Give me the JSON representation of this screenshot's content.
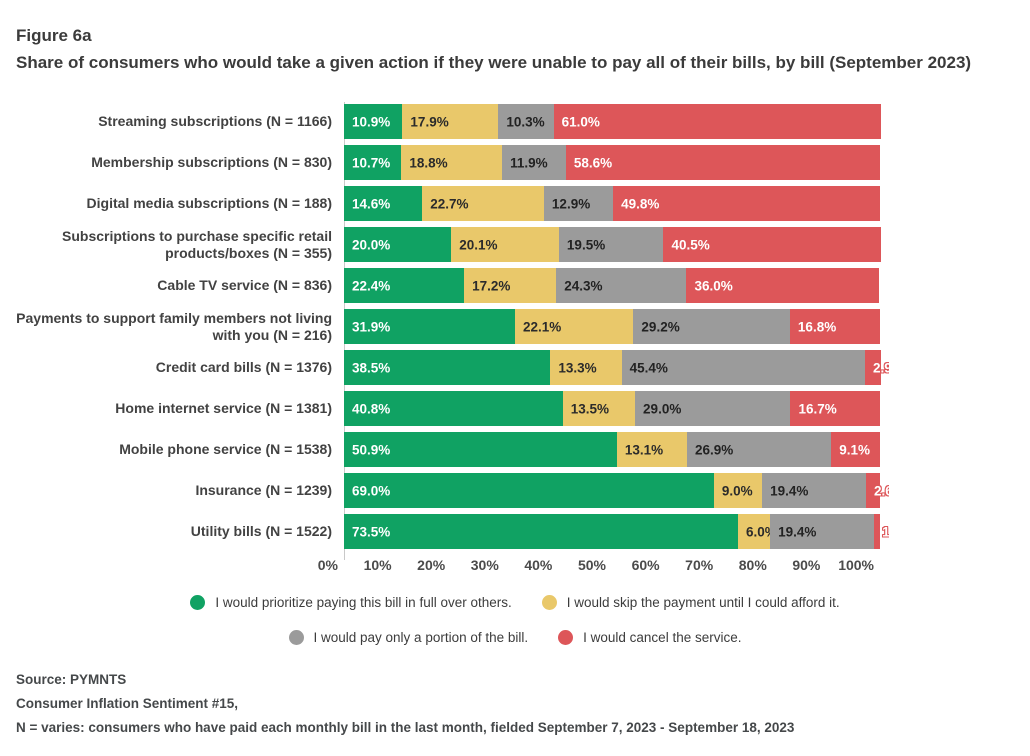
{
  "figure": {
    "label": "Figure 6a",
    "title": "Share of consumers who would take a given action if they were unable to pay all of their bills, by bill (September 2023)"
  },
  "chart_data": {
    "type": "bar",
    "orientation": "horizontal",
    "stacked": true,
    "unit": "percent",
    "value_label_format": "one-decimal-percent",
    "categories": [
      "Streaming subscriptions (N = 1166)",
      "Membership subscriptions (N = 830)",
      "Digital media subscriptions (N = 188)",
      "Subscriptions to purchase specific retail products/boxes (N = 355)",
      "Cable TV service (N = 836)",
      "Payments to support family members not living with you (N = 216)",
      "Credit card bills (N = 1376)",
      "Home internet service (N = 1381)",
      "Mobile phone service (N = 1538)",
      "Insurance (N = 1239)",
      "Utility bills (N = 1522)"
    ],
    "series": [
      {
        "name": "I would prioritize paying this bill in full over others.",
        "color": "#10a263",
        "label_color": "#ffffff",
        "values": [
          10.9,
          10.7,
          14.6,
          20.0,
          22.4,
          31.9,
          38.5,
          40.8,
          50.9,
          69.0,
          73.5
        ]
      },
      {
        "name": "I would skip the payment until I could afford it.",
        "color": "#e9c86a",
        "label_color": "#2b2b2b",
        "values": [
          17.9,
          18.8,
          22.7,
          20.1,
          17.2,
          22.1,
          13.3,
          13.5,
          13.1,
          9.0,
          6.0
        ]
      },
      {
        "name": "I would pay only a portion of the bill.",
        "color": "#9b9b9b",
        "label_color": "#222222",
        "values": [
          10.3,
          11.9,
          12.9,
          19.5,
          24.3,
          29.2,
          45.4,
          29.0,
          26.9,
          19.4,
          19.4
        ]
      },
      {
        "name": "I would cancel the service.",
        "color": "#dd5659",
        "label_color": "#ffffff",
        "values": [
          61.0,
          58.6,
          49.8,
          40.5,
          36.0,
          16.8,
          2.9,
          16.7,
          9.1,
          2.6,
          1.1
        ]
      }
    ],
    "x_axis": {
      "min": 0,
      "max": 100,
      "tick_labels": [
        "0%",
        "10%",
        "20%",
        "30%",
        "40%",
        "50%",
        "60%",
        "70%",
        "80%",
        "90%",
        "100%"
      ]
    },
    "legend_position": "bottom",
    "grid": false
  },
  "footer": {
    "lines": [
      "Source: PYMNTS",
      "Consumer Inflation Sentiment #15,",
      "N = varies: consumers who have paid each monthly bill in the last month, fielded September 7, 2023 - September 18, 2023"
    ]
  }
}
